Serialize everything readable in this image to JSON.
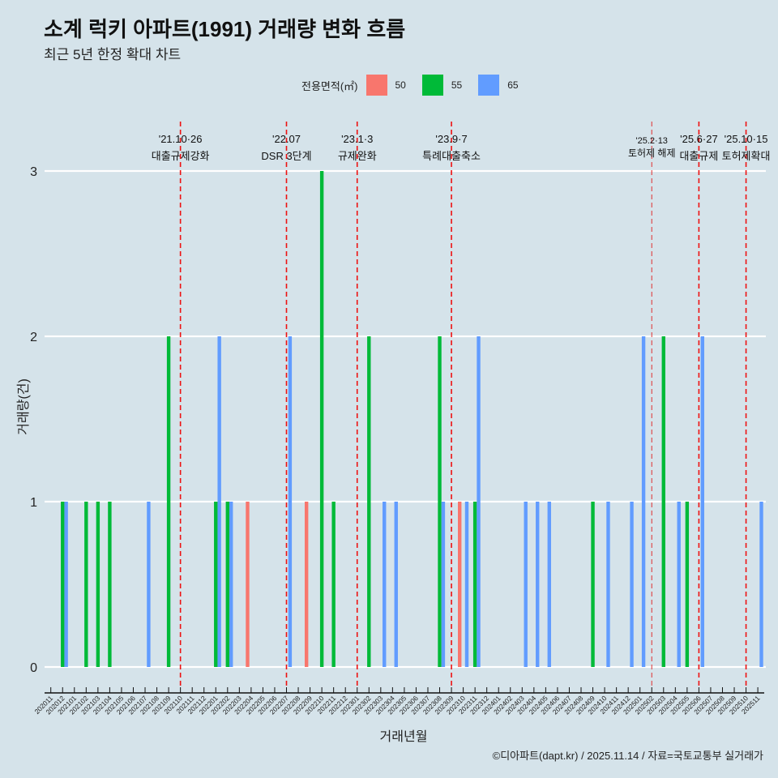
{
  "chart_data": {
    "type": "bar",
    "title": "소계 럭키 아파트(1991) 거래량 변화 흐름",
    "subtitle": "최근 5년 한정 확대 차트",
    "xlabel": "거래년월",
    "ylabel": "거래량(건)",
    "ylim": [
      0,
      3
    ],
    "yticks": [
      "0",
      "1",
      "2",
      "3"
    ],
    "grid": "horizontal major",
    "legend": {
      "title": "전용면적(㎡)",
      "placement": "top"
    },
    "categories": [
      "202011",
      "202012",
      "202101",
      "202102",
      "202103",
      "202104",
      "202105",
      "202106",
      "202107",
      "202108",
      "202109",
      "202110",
      "202111",
      "202112",
      "202201",
      "202202",
      "202203",
      "202204",
      "202205",
      "202206",
      "202207",
      "202208",
      "202209",
      "202210",
      "202211",
      "202212",
      "202301",
      "202302",
      "202303",
      "202304",
      "202305",
      "202306",
      "202307",
      "202308",
      "202309",
      "202310",
      "202311",
      "202312",
      "202401",
      "202402",
      "202403",
      "202404",
      "202405",
      "202406",
      "202407",
      "202408",
      "202409",
      "202410",
      "202411",
      "202412",
      "202501",
      "202502",
      "202503",
      "202504",
      "202505",
      "202506",
      "202507",
      "202508",
      "202509",
      "202510",
      "202511"
    ],
    "series": [
      {
        "name": "50",
        "color": "#F8766D",
        "values": {
          "202204": 1,
          "202209": 1,
          "202310": 1
        }
      },
      {
        "name": "55",
        "color": "#00BA38",
        "values": {
          "202012": 1,
          "202102": 1,
          "202103": 1,
          "202104": 1,
          "202109": 2,
          "202201": 1,
          "202202": 1,
          "202210": 3,
          "202211": 1,
          "202302": 2,
          "202308": 2,
          "202311": 1,
          "202409": 1,
          "202503": 2,
          "202505": 1
        }
      },
      {
        "name": "65",
        "color": "#619CFF",
        "values": {
          "202012": 1,
          "202107": 1,
          "202201": 2,
          "202202": 1,
          "202207": 2,
          "202303": 1,
          "202304": 1,
          "202308": 1,
          "202310": 1,
          "202311": 2,
          "202403": 1,
          "202404": 1,
          "202405": 1,
          "202410": 1,
          "202412": 1,
          "202501": 2,
          "202504": 1,
          "202506": 2,
          "202511": 1
        }
      }
    ],
    "annotations": [
      {
        "month": "202110",
        "date": "'21.10·26",
        "label": "대출규제강화",
        "style": "major"
      },
      {
        "month": "202207",
        "date": "'22.07",
        "label": "DSR 3단계",
        "style": "major"
      },
      {
        "month": "202301",
        "date": "'23.1·3",
        "label": "규제완화",
        "style": "major"
      },
      {
        "month": "202309",
        "date": "'23.9·7",
        "label": "특례대출축소",
        "style": "major"
      },
      {
        "month": "202502",
        "date": "'25.2·13",
        "label": "토허제 해제",
        "style": "minor"
      },
      {
        "month": "202506",
        "date": "'25.6·27",
        "label": "대출규제",
        "style": "major"
      },
      {
        "month": "202510",
        "date": "'25.10·15",
        "label": "토허제확대",
        "style": "major"
      }
    ]
  },
  "caption": "©디아파트(dapt.kr) / 2025.11.14 / 자료=국토교통부 실거래가"
}
